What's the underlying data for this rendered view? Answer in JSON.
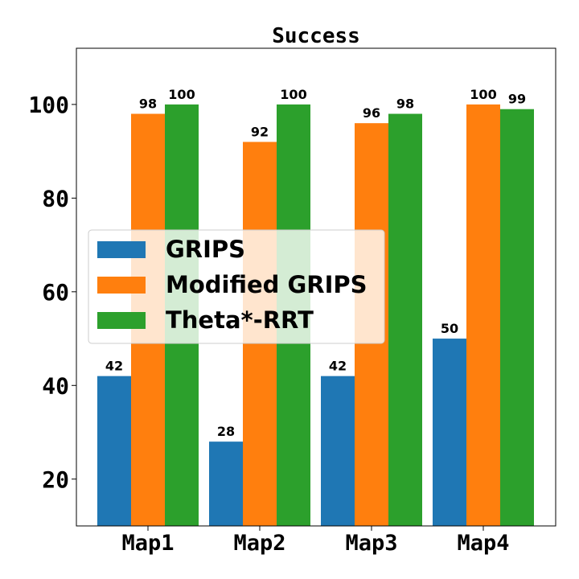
{
  "chart_data": {
    "type": "bar",
    "title": "Success",
    "xlabel": "",
    "ylabel": "",
    "categories": [
      "Map1",
      "Map2",
      "Map3",
      "Map4"
    ],
    "series": [
      {
        "name": "GRIPS",
        "values": [
          42,
          28,
          42,
          50
        ],
        "color": "#1f77b4"
      },
      {
        "name": "Modified GRIPS",
        "values": [
          98,
          92,
          96,
          100
        ],
        "color": "#ff7f0e"
      },
      {
        "name": "Theta*-RRT",
        "values": [
          100,
          100,
          98,
          99
        ],
        "color": "#2ca02c"
      }
    ],
    "ylim": [
      10,
      112
    ],
    "yticks": [
      20,
      40,
      60,
      80,
      100
    ],
    "grid": false,
    "legend_position": "center-left",
    "data_labels": true
  }
}
